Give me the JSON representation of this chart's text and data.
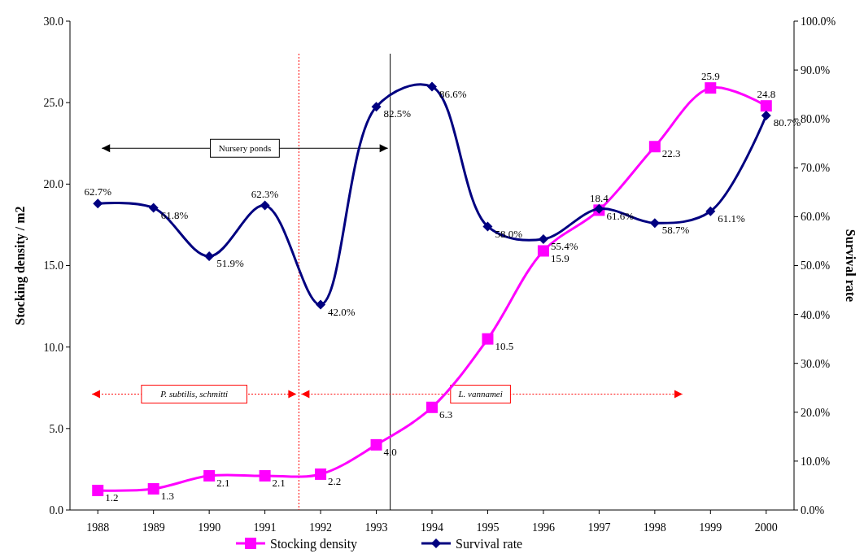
{
  "chart_data": {
    "type": "line",
    "ylabel": "Stocking density / m2",
    "y2label": "Survival rate",
    "x": [
      1988,
      1989,
      1990,
      1991,
      1992,
      1993,
      1994,
      1995,
      1996,
      1997,
      1998,
      1999,
      2000
    ],
    "xlim": [
      1987.5,
      2000.5
    ],
    "xticks": [
      1988,
      1989,
      1990,
      1991,
      1992,
      1993,
      1994,
      1995,
      1996,
      1997,
      1998,
      1999,
      2000
    ],
    "ylim": [
      0,
      30
    ],
    "yticks": [
      {
        "value": 0,
        "label": "0.0"
      },
      {
        "value": 5,
        "label": "5.0"
      },
      {
        "value": 10,
        "label": "10.0"
      },
      {
        "value": 15,
        "label": "15.0"
      },
      {
        "value": 20,
        "label": "20.0"
      },
      {
        "value": 25,
        "label": "25.0"
      },
      {
        "value": 30,
        "label": "30.0"
      }
    ],
    "y2lim": [
      0,
      100
    ],
    "y2ticks": [
      {
        "value": 0,
        "label": "0.0%"
      },
      {
        "value": 10,
        "label": "10.0%"
      },
      {
        "value": 20,
        "label": "20.0%"
      },
      {
        "value": 30,
        "label": "30.0%"
      },
      {
        "value": 40,
        "label": "40.0%"
      },
      {
        "value": 50,
        "label": "50.0%"
      },
      {
        "value": 60,
        "label": "60.0%"
      },
      {
        "value": 70,
        "label": "70.0%"
      },
      {
        "value": 80,
        "label": "80.0%"
      },
      {
        "value": 90,
        "label": "90.0%"
      },
      {
        "value": 100,
        "label": "100.0%"
      }
    ],
    "series": [
      {
        "name": "Stocking density",
        "color": "#ff00ff",
        "marker": "square",
        "values": [
          1.2,
          1.3,
          2.1,
          2.1,
          2.2,
          4.0,
          6.3,
          10.5,
          15.9,
          18.4,
          22.3,
          25.9,
          24.8
        ],
        "value_labels": [
          "1.2",
          "1.3",
          "2.1",
          "2.1",
          "2.2",
          "4.0",
          "6.3",
          "10.5",
          "15.9",
          "18.4",
          "22.3",
          "25.9",
          "24.8"
        ]
      },
      {
        "name": "Survival rate",
        "color": "#000080",
        "marker": "diamond",
        "axis": "y2",
        "values": [
          62.7,
          61.8,
          51.9,
          62.3,
          42.0,
          82.5,
          86.6,
          58.0,
          55.4,
          61.6,
          58.7,
          61.1,
          80.7
        ],
        "value_labels": [
          "62.7%",
          "61.8%",
          "51.9%",
          "62.3%",
          "42.0%",
          "82.5%",
          "86.6%",
          "58.0%",
          "55.4%",
          "61.6%",
          "58.7%",
          "61.1%",
          "80.7%"
        ]
      }
    ],
    "ref_lines": [
      {
        "axis": "x",
        "value": 1991.61,
        "color": "#ff0000",
        "line_style": "dotted"
      },
      {
        "axis": "x",
        "value": 1993.25,
        "color": "#000000",
        "line_style": "solid"
      }
    ],
    "annotations": [
      "Nursery ponds",
      "P. subtilis, schmitti",
      "L. vannamei"
    ],
    "legend": "bottom",
    "grid": false
  }
}
